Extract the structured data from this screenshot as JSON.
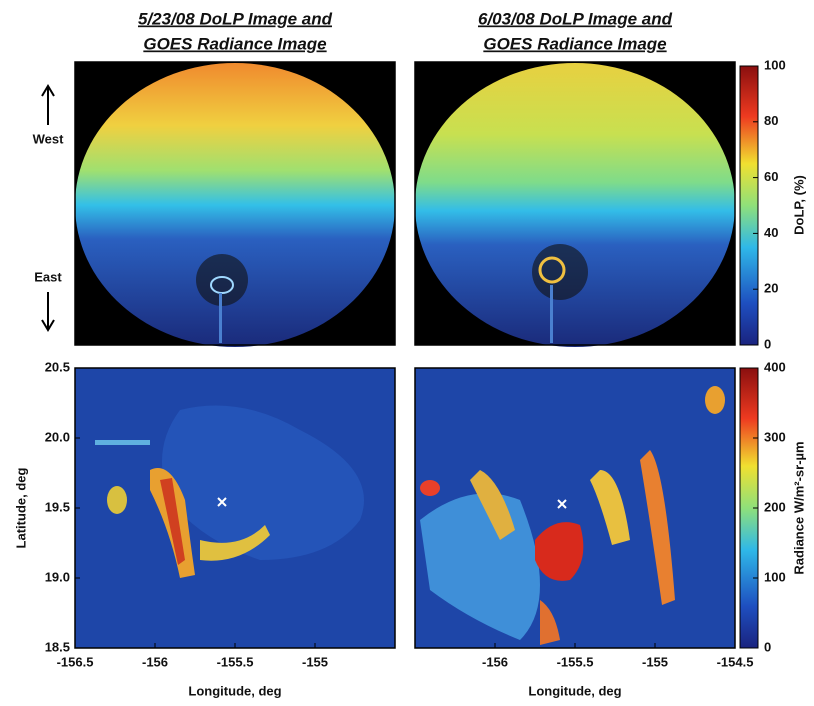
{
  "figure": {
    "panels": [
      {
        "title_lines": [
          "5/23/08 DoLP Image and",
          "GOES Radiance Image"
        ]
      },
      {
        "title_lines": [
          "6/03/08 DoLP Image and",
          "GOES Radiance Image"
        ]
      }
    ],
    "annotations": {
      "west": "West",
      "east": "East"
    },
    "dolp_colorbar": {
      "label": "DoLP, (%)",
      "lim": [
        0,
        100
      ],
      "ticks": [
        0,
        20,
        40,
        60,
        80,
        100
      ]
    },
    "radiance_colorbar": {
      "label": "Radiance W/m²-sr-µm",
      "lim": [
        0,
        400
      ],
      "ticks": [
        0,
        100,
        200,
        300,
        400
      ]
    },
    "maps": [
      {
        "xlim": [
          -156.5,
          -154.5
        ],
        "ylim": [
          18.5,
          20.5
        ],
        "xticks": [
          -156.5,
          -156,
          -155.5,
          -155
        ],
        "yticks": [
          18.5,
          {
            "value": 19,
            "label": "19.0"
          },
          19.5,
          {
            "value": 20,
            "label": "20.0"
          },
          20.5
        ],
        "xlabel": "Longitude, deg",
        "ylabel": "Latitude, deg"
      },
      {
        "xlim": [
          -156.5,
          -154.5
        ],
        "ylim": [
          18.5,
          20.5
        ],
        "xticks": [
          -156,
          -155.5,
          -155,
          -154.5
        ],
        "xlabel": "Longitude, deg"
      }
    ]
  }
}
